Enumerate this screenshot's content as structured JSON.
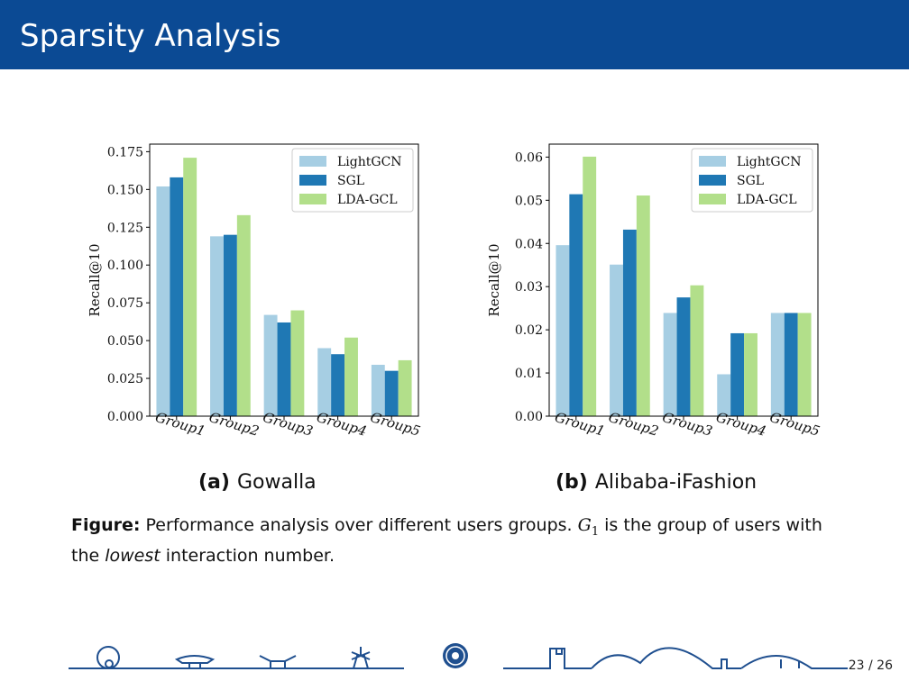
{
  "header": {
    "title": "Sparsity Analysis"
  },
  "colors": {
    "header_bg": "#0b4a94",
    "lightgcn": "#a6cee3",
    "sgl": "#1f78b4",
    "ldagcl": "#b2df8a"
  },
  "chart_data": [
    {
      "type": "bar",
      "subcaption_label": "(a)",
      "subcaption": "Gowalla",
      "ylabel": "Recall@10",
      "xlabel": "",
      "categories": [
        "Group1",
        "Group2",
        "Group3",
        "Group4",
        "Group5"
      ],
      "ylim": [
        0,
        0.18
      ],
      "yticks": [
        "0.000",
        "0.025",
        "0.050",
        "0.075",
        "0.100",
        "0.125",
        "0.150",
        "0.175"
      ],
      "legend_position": "top-right",
      "series": [
        {
          "name": "LightGCN",
          "values": [
            0.152,
            0.119,
            0.067,
            0.045,
            0.034
          ]
        },
        {
          "name": "SGL",
          "values": [
            0.158,
            0.12,
            0.062,
            0.041,
            0.03
          ]
        },
        {
          "name": "LDA-GCL",
          "values": [
            0.171,
            0.133,
            0.07,
            0.052,
            0.037
          ]
        }
      ]
    },
    {
      "type": "bar",
      "subcaption_label": "(b)",
      "subcaption": "Alibaba-iFashion",
      "ylabel": "Recall@10",
      "xlabel": "",
      "categories": [
        "Group1",
        "Group2",
        "Group3",
        "Group4",
        "Group5"
      ],
      "ylim": [
        0,
        0.063
      ],
      "yticks": [
        "0.00",
        "0.01",
        "0.02",
        "0.03",
        "0.04",
        "0.05",
        "0.06"
      ],
      "legend_position": "top-right",
      "series": [
        {
          "name": "LightGCN",
          "values": [
            0.0396,
            0.0351,
            0.0239,
            0.0097,
            0.0239
          ]
        },
        {
          "name": "SGL",
          "values": [
            0.0514,
            0.0432,
            0.0275,
            0.0192,
            0.0239
          ]
        },
        {
          "name": "LDA-GCL",
          "values": [
            0.0601,
            0.0511,
            0.0303,
            0.0192,
            0.0239
          ]
        }
      ]
    }
  ],
  "caption": {
    "label": "Figure:",
    "text1": "Performance analysis over different users groups.",
    "math_var": "G",
    "math_sub": "1",
    "text2": "is the group of users with the",
    "emph": "lowest",
    "text3": "interaction number."
  },
  "footer": {
    "page": "23 / 26"
  }
}
